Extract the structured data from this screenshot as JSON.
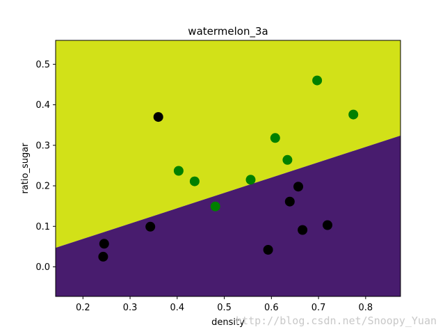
{
  "chart_data": {
    "type": "scatter",
    "title": "watermelon_3a",
    "xlabel": "density",
    "ylabel": "ratio_sugar",
    "xlim": [
      0.142,
      0.874
    ],
    "ylim": [
      -0.073,
      0.559
    ],
    "xticks": [
      "0.2",
      "0.3",
      "0.4",
      "0.5",
      "0.6",
      "0.7",
      "0.8"
    ],
    "yticks": [
      "0.0",
      "0.1",
      "0.2",
      "0.3",
      "0.4",
      "0.5"
    ],
    "grid": false,
    "legend": "none",
    "decision_boundary": {
      "x": [
        0.142,
        0.874
      ],
      "y": [
        0.047,
        0.324
      ],
      "above_color": "#d2e118",
      "below_color": "#481c6e"
    },
    "series": [
      {
        "color": "#008000",
        "points": [
          [
            0.697,
            0.46
          ],
          [
            0.774,
            0.376
          ],
          [
            0.608,
            0.318
          ],
          [
            0.634,
            0.264
          ],
          [
            0.403,
            0.237
          ],
          [
            0.437,
            0.211
          ],
          [
            0.556,
            0.215
          ],
          [
            0.481,
            0.149
          ]
        ]
      },
      {
        "color": "#000000",
        "points": [
          [
            0.36,
            0.37
          ],
          [
            0.657,
            0.198
          ],
          [
            0.639,
            0.161
          ],
          [
            0.719,
            0.103
          ],
          [
            0.666,
            0.091
          ],
          [
            0.343,
            0.099
          ],
          [
            0.593,
            0.042
          ],
          [
            0.245,
            0.057
          ],
          [
            0.243,
            0.025
          ]
        ]
      }
    ]
  },
  "watermark": "http://blog.csdn.net/Snoopy_Yuan"
}
